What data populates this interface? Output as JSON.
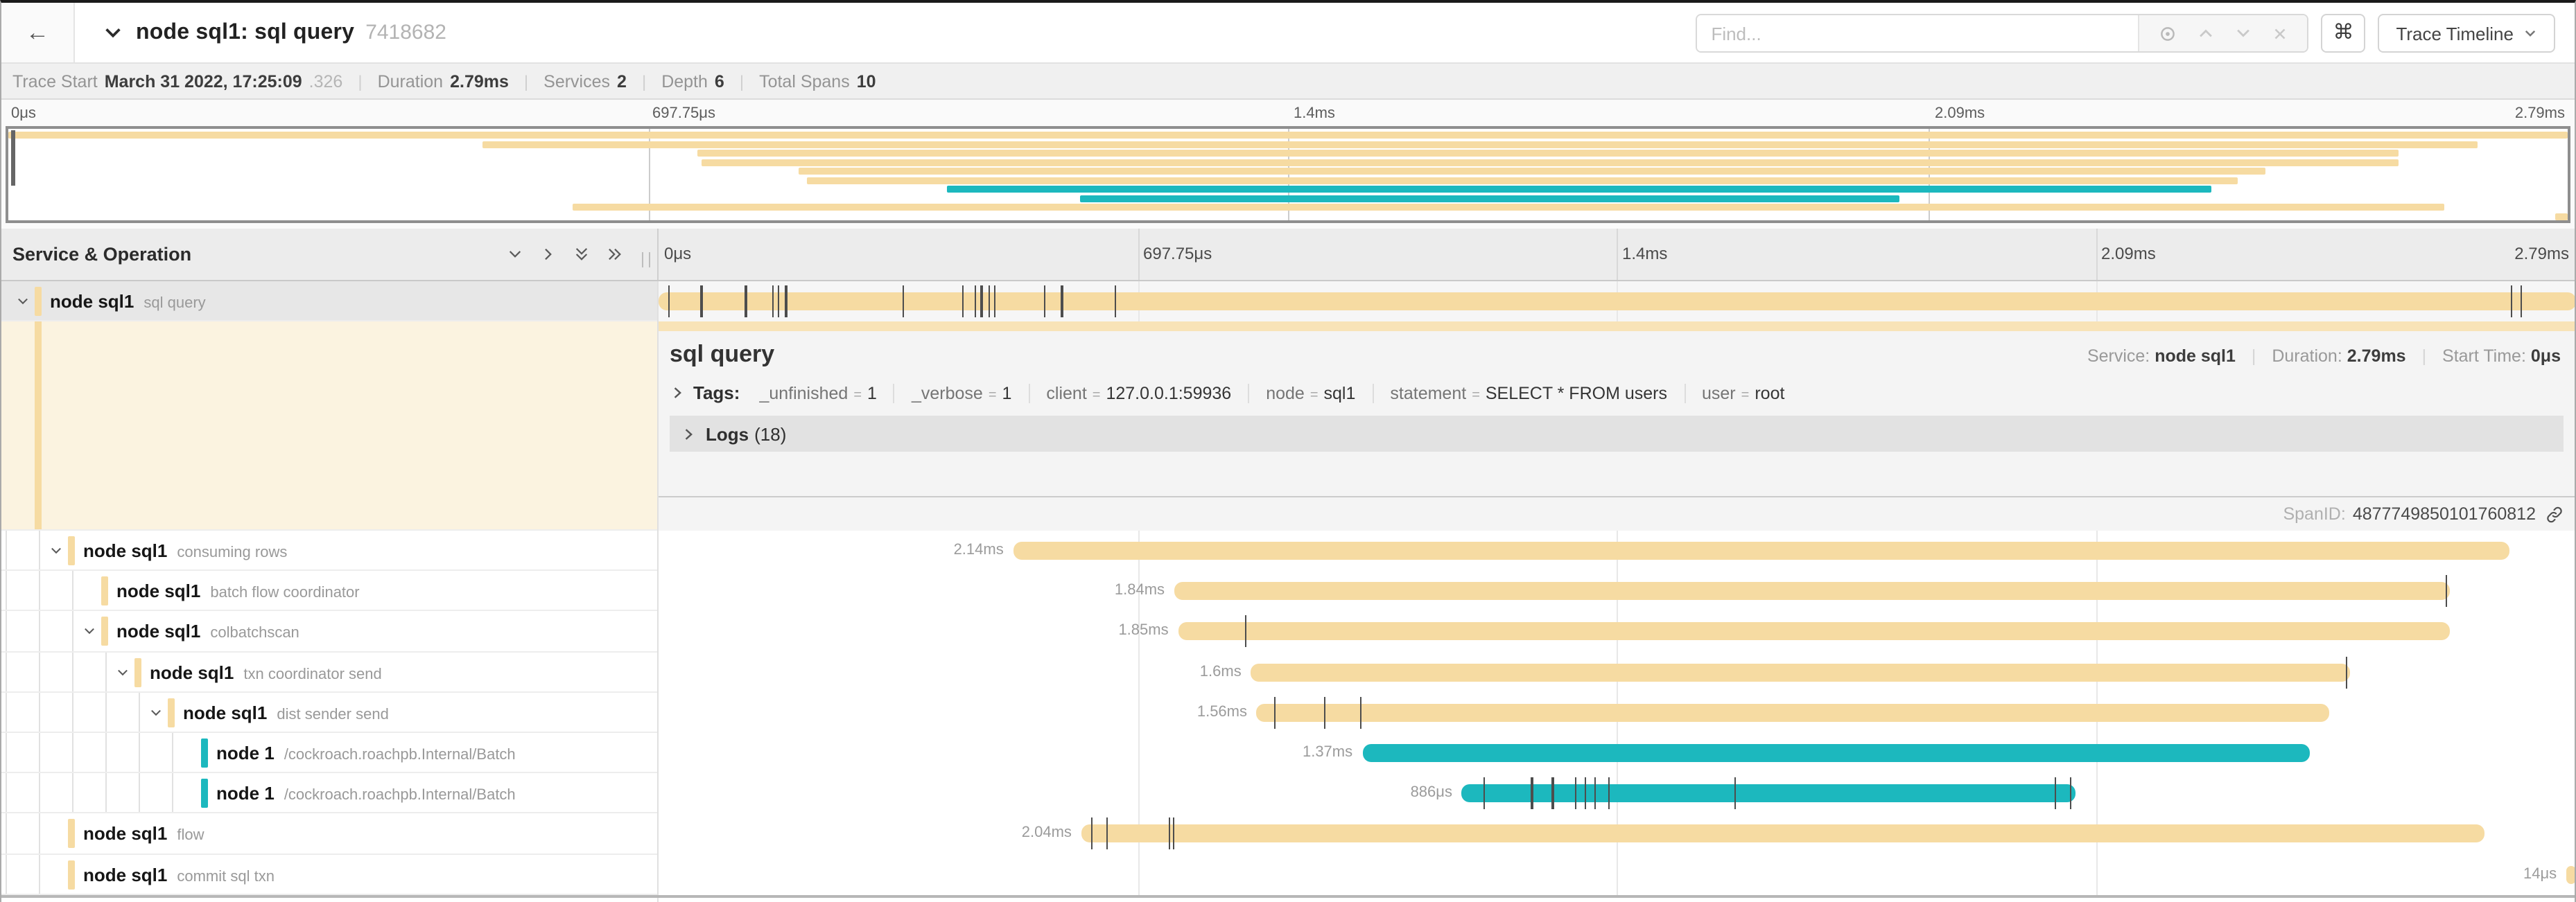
{
  "header": {
    "title": "node sql1: sql query",
    "trace_id": "7418682",
    "find_placeholder": "Find...",
    "view_button": "Trace Timeline"
  },
  "info": {
    "trace_start_label": "Trace Start",
    "trace_start": "March 31 2022, 17:25:09",
    "trace_start_fraction": ".326",
    "duration_label": "Duration",
    "duration": "2.79ms",
    "services_label": "Services",
    "services": "2",
    "depth_label": "Depth",
    "depth": "6",
    "total_spans_label": "Total Spans",
    "total_spans": "10"
  },
  "ticks": [
    "0μs",
    "697.75μs",
    "1.4ms",
    "2.09ms",
    "2.79ms"
  ],
  "tree_header": "Service & Operation",
  "colors": {
    "tan": "#F6DBA2",
    "teal": "#1CB8BE"
  },
  "spans": [
    {
      "service": "node sql1",
      "operation": "sql query",
      "level": 0,
      "color": "tan",
      "chevron": true,
      "selected": true,
      "start": 0,
      "end": 1,
      "label": "",
      "ticks": [
        0.005,
        0.022,
        0.045,
        0.059,
        0.062,
        0.066,
        0.127,
        0.158,
        0.165,
        0.168,
        0.172,
        0.175,
        0.201,
        0.21,
        0.238,
        0.966,
        0.971
      ]
    },
    {
      "service": "node sql1",
      "operation": "consuming rows",
      "level": 1,
      "color": "tan",
      "chevron": true,
      "start": 0.185,
      "end": 0.965,
      "label": "2.14ms",
      "ticks": []
    },
    {
      "service": "node sql1",
      "operation": "batch flow coordinator",
      "level": 2,
      "color": "tan",
      "chevron": false,
      "start": 0.269,
      "end": 0.934,
      "label": "1.84ms",
      "ticks": [
        0.932
      ]
    },
    {
      "service": "node sql1",
      "operation": "colbatchscan",
      "level": 2,
      "color": "tan",
      "chevron": true,
      "start": 0.271,
      "end": 0.934,
      "label": "1.85ms",
      "ticks": [
        0.306
      ]
    },
    {
      "service": "node sql1",
      "operation": "txn coordinator send",
      "level": 3,
      "color": "tan",
      "chevron": true,
      "start": 0.309,
      "end": 0.882,
      "label": "1.6ms",
      "ticks": [
        0.88
      ]
    },
    {
      "service": "node sql1",
      "operation": "dist sender send",
      "level": 4,
      "color": "tan",
      "chevron": true,
      "start": 0.312,
      "end": 0.871,
      "label": "1.56ms",
      "ticks": [
        0.321,
        0.347,
        0.366
      ]
    },
    {
      "service": "node 1",
      "operation": "/cockroach.roachpb.Internal/Batch",
      "level": 5,
      "color": "teal",
      "chevron": false,
      "start": 0.367,
      "end": 0.861,
      "label": "1.37ms",
      "ticks": []
    },
    {
      "service": "node 1",
      "operation": "/cockroach.roachpb.Internal/Batch",
      "level": 5,
      "color": "teal",
      "chevron": false,
      "start": 0.419,
      "end": 0.739,
      "label": "886μs",
      "ticks": [
        0.43,
        0.455,
        0.466,
        0.478,
        0.483,
        0.488,
        0.495,
        0.561,
        0.728,
        0.736
      ]
    },
    {
      "service": "node sql1",
      "operation": "flow",
      "level": 1,
      "color": "tan",
      "chevron": false,
      "start": 0.2205,
      "end": 0.952,
      "label": "2.04ms",
      "ticks": [
        0.2256,
        0.2333,
        0.266,
        0.268
      ]
    },
    {
      "service": "node sql1",
      "operation": "commit sql txn",
      "level": 1,
      "color": "tan",
      "chevron": false,
      "start": 0.995,
      "end": 1.0,
      "label": "14μs",
      "ticks": []
    }
  ],
  "detail": {
    "title": "sql query",
    "service_label": "Service:",
    "service": "node sql1",
    "duration_label": "Duration:",
    "duration": "2.79ms",
    "start_label": "Start Time:",
    "start": "0μs",
    "tags_label": "Tags:",
    "tags": [
      {
        "key": "_unfinished",
        "value": "1"
      },
      {
        "key": "_verbose",
        "value": "1"
      },
      {
        "key": "client",
        "value": "127.0.0.1:59936"
      },
      {
        "key": "node",
        "value": "sql1"
      },
      {
        "key": "statement",
        "value": "SELECT * FROM users"
      },
      {
        "key": "user",
        "value": "root"
      }
    ],
    "logs_label": "Logs",
    "logs_count": "(18)",
    "spanid_label": "SpanID:",
    "spanid": "4877749850101760812"
  }
}
